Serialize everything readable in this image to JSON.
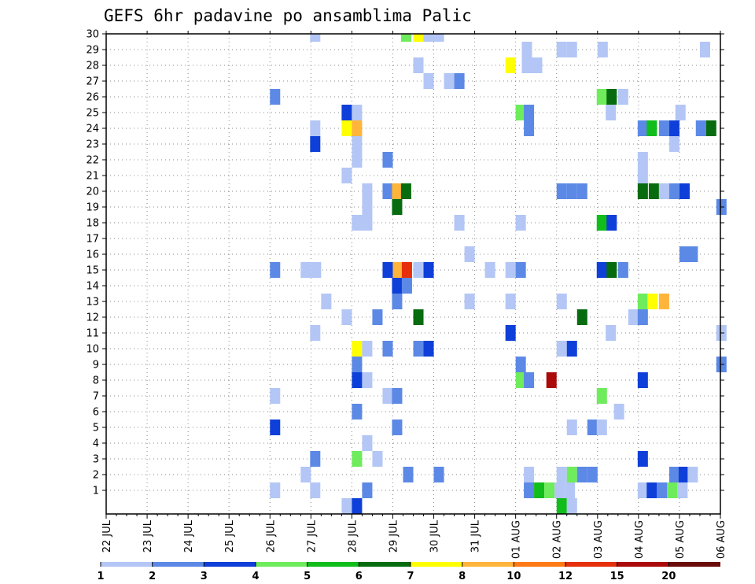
{
  "chart_data": {
    "type": "heatmap",
    "title": "GEFS 6hr padavine po ansamblima Palic",
    "xlabel": "",
    "ylabel": "",
    "x_tick_labels": [
      "22 JUL",
      "23 JUL",
      "24 JUL",
      "25 JUL",
      "26 JUL",
      "27 JUL",
      "28 JUL",
      "29 JUL",
      "30 JUL",
      "31 JUL",
      "01 AUG",
      "02 AUG",
      "03 AUG",
      "04 AUG",
      "05 AUG",
      "06 AUG"
    ],
    "y_tick_labels": [
      "1",
      "2",
      "3",
      "4",
      "5",
      "6",
      "7",
      "8",
      "9",
      "10",
      "11",
      "12",
      "13",
      "14",
      "15",
      "16",
      "17",
      "18",
      "19",
      "20",
      "21",
      "22",
      "23",
      "24",
      "25",
      "26",
      "27",
      "28",
      "29",
      "30"
    ],
    "colorbar": {
      "labels": [
        "1",
        "2",
        "3",
        "4",
        "5",
        "6",
        "7",
        "8",
        "10",
        "12",
        "15",
        "20"
      ],
      "colors": [
        "#b3c6f5",
        "#5c89e6",
        "#0f3fd9",
        "#6eec5c",
        "#10bd1a",
        "#076b0f",
        "#ffff00",
        "#ffb43b",
        "#ff7a15",
        "#e5300b",
        "#aa0a0a",
        "#6b0a0a"
      ]
    },
    "color_levels": [
      {
        "level": 1,
        "color": "#b3c6f5"
      },
      {
        "level": 2,
        "color": "#5c89e6"
      },
      {
        "level": 3,
        "color": "#0f3fd9"
      },
      {
        "level": 4,
        "color": "#6eec5c"
      },
      {
        "level": 5,
        "color": "#10bd1a"
      },
      {
        "level": 6,
        "color": "#076b0f"
      },
      {
        "level": 7,
        "color": "#ffff00"
      },
      {
        "level": 8,
        "color": "#ffb43b"
      },
      {
        "level": 10,
        "color": "#ff7a15"
      },
      {
        "level": 12,
        "color": "#e5300b"
      },
      {
        "level": 15,
        "color": "#aa0a0a"
      },
      {
        "level": 20,
        "color": "#6b0a0a"
      }
    ],
    "cells": [
      {
        "day": 4.98,
        "member": 30,
        "level": 1
      },
      {
        "day": 7.2,
        "member": 30,
        "level": 4
      },
      {
        "day": 7.5,
        "member": 30,
        "level": 7
      },
      {
        "day": 7.75,
        "member": 30,
        "level": 1
      },
      {
        "day": 8.0,
        "member": 30,
        "level": 1
      },
      {
        "day": 10.15,
        "member": 29,
        "level": 1
      },
      {
        "day": 11.0,
        "member": 29,
        "level": 1
      },
      {
        "day": 11.25,
        "member": 29,
        "level": 1
      },
      {
        "day": 12.0,
        "member": 29,
        "level": 1
      },
      {
        "day": 14.5,
        "member": 29,
        "level": 1
      },
      {
        "day": 7.5,
        "member": 28,
        "level": 1
      },
      {
        "day": 9.75,
        "member": 28,
        "level": 7
      },
      {
        "day": 10.15,
        "member": 28,
        "level": 1
      },
      {
        "day": 10.4,
        "member": 28,
        "level": 1
      },
      {
        "day": 7.75,
        "member": 27,
        "level": 1
      },
      {
        "day": 8.25,
        "member": 27,
        "level": 1
      },
      {
        "day": 8.5,
        "member": 27,
        "level": 2
      },
      {
        "day": 4.0,
        "member": 26,
        "level": 2
      },
      {
        "day": 11.98,
        "member": 26,
        "level": 4
      },
      {
        "day": 12.22,
        "member": 26,
        "level": 6
      },
      {
        "day": 12.5,
        "member": 26,
        "level": 1
      },
      {
        "day": 5.75,
        "member": 25,
        "level": 3
      },
      {
        "day": 6.0,
        "member": 25,
        "level": 1
      },
      {
        "day": 10.0,
        "member": 25,
        "level": 4
      },
      {
        "day": 10.2,
        "member": 25,
        "level": 2
      },
      {
        "day": 12.2,
        "member": 25,
        "level": 1
      },
      {
        "day": 13.9,
        "member": 25,
        "level": 1
      },
      {
        "day": 4.98,
        "member": 24,
        "level": 1
      },
      {
        "day": 5.75,
        "member": 24,
        "level": 7
      },
      {
        "day": 6.0,
        "member": 24,
        "level": 8
      },
      {
        "day": 10.2,
        "member": 24,
        "level": 2
      },
      {
        "day": 12.98,
        "member": 24,
        "level": 2
      },
      {
        "day": 13.2,
        "member": 24,
        "level": 5
      },
      {
        "day": 13.5,
        "member": 24,
        "level": 2
      },
      {
        "day": 13.75,
        "member": 24,
        "level": 3
      },
      {
        "day": 14.4,
        "member": 24,
        "level": 2
      },
      {
        "day": 14.65,
        "member": 24,
        "level": 6
      },
      {
        "day": 4.98,
        "member": 23,
        "level": 3
      },
      {
        "day": 6.0,
        "member": 23,
        "level": 1
      },
      {
        "day": 13.75,
        "member": 23,
        "level": 1
      },
      {
        "day": 6.0,
        "member": 22,
        "level": 1
      },
      {
        "day": 6.75,
        "member": 22,
        "level": 2
      },
      {
        "day": 12.98,
        "member": 22,
        "level": 1
      },
      {
        "day": 5.75,
        "member": 21,
        "level": 1
      },
      {
        "day": 12.98,
        "member": 21,
        "level": 1
      },
      {
        "day": 6.25,
        "member": 20,
        "level": 1
      },
      {
        "day": 6.75,
        "member": 20,
        "level": 2
      },
      {
        "day": 6.98,
        "member": 20,
        "level": 8
      },
      {
        "day": 7.2,
        "member": 20,
        "level": 6
      },
      {
        "day": 11.0,
        "member": 20,
        "level": 2
      },
      {
        "day": 11.25,
        "member": 20,
        "level": 2
      },
      {
        "day": 11.5,
        "member": 20,
        "level": 2
      },
      {
        "day": 12.98,
        "member": 20,
        "level": 6
      },
      {
        "day": 13.25,
        "member": 20,
        "level": 6
      },
      {
        "day": 13.5,
        "member": 20,
        "level": 1
      },
      {
        "day": 13.75,
        "member": 20,
        "level": 2
      },
      {
        "day": 14.0,
        "member": 20,
        "level": 3
      },
      {
        "day": 6.25,
        "member": 19,
        "level": 1
      },
      {
        "day": 6.98,
        "member": 19,
        "level": 6
      },
      {
        "day": 14.9,
        "member": 19,
        "level": 2
      },
      {
        "day": 6.0,
        "member": 18,
        "level": 1
      },
      {
        "day": 6.25,
        "member": 18,
        "level": 1
      },
      {
        "day": 8.5,
        "member": 18,
        "level": 1
      },
      {
        "day": 10.0,
        "member": 18,
        "level": 1
      },
      {
        "day": 11.98,
        "member": 18,
        "level": 5
      },
      {
        "day": 12.22,
        "member": 18,
        "level": 3
      },
      {
        "day": 8.75,
        "member": 16,
        "level": 1
      },
      {
        "day": 14.0,
        "member": 16,
        "level": 2
      },
      {
        "day": 14.2,
        "member": 16,
        "level": 2
      },
      {
        "day": 4.0,
        "member": 15,
        "level": 2
      },
      {
        "day": 4.75,
        "member": 15,
        "level": 1
      },
      {
        "day": 5.0,
        "member": 15,
        "level": 1
      },
      {
        "day": 6.75,
        "member": 15,
        "level": 3
      },
      {
        "day": 7.0,
        "member": 15,
        "level": 8
      },
      {
        "day": 7.22,
        "member": 15,
        "level": 12
      },
      {
        "day": 7.5,
        "member": 15,
        "level": 1
      },
      {
        "day": 7.75,
        "member": 15,
        "level": 3
      },
      {
        "day": 9.25,
        "member": 15,
        "level": 1
      },
      {
        "day": 9.75,
        "member": 15,
        "level": 1
      },
      {
        "day": 10.0,
        "member": 15,
        "level": 2
      },
      {
        "day": 11.98,
        "member": 15,
        "level": 3
      },
      {
        "day": 12.22,
        "member": 15,
        "level": 6
      },
      {
        "day": 12.5,
        "member": 15,
        "level": 2
      },
      {
        "day": 6.98,
        "member": 14,
        "level": 3
      },
      {
        "day": 7.22,
        "member": 14,
        "level": 2
      },
      {
        "day": 5.25,
        "member": 13,
        "level": 1
      },
      {
        "day": 6.98,
        "member": 13,
        "level": 2
      },
      {
        "day": 8.75,
        "member": 13,
        "level": 1
      },
      {
        "day": 9.75,
        "member": 13,
        "level": 1
      },
      {
        "day": 11.0,
        "member": 13,
        "level": 1
      },
      {
        "day": 12.98,
        "member": 13,
        "level": 4
      },
      {
        "day": 13.22,
        "member": 13,
        "level": 7
      },
      {
        "day": 13.5,
        "member": 13,
        "level": 8
      },
      {
        "day": 5.75,
        "member": 12,
        "level": 1
      },
      {
        "day": 6.5,
        "member": 12,
        "level": 2
      },
      {
        "day": 7.5,
        "member": 12,
        "level": 6
      },
      {
        "day": 11.5,
        "member": 12,
        "level": 6
      },
      {
        "day": 12.75,
        "member": 12,
        "level": 1
      },
      {
        "day": 12.98,
        "member": 12,
        "level": 2
      },
      {
        "day": 4.98,
        "member": 11,
        "level": 1
      },
      {
        "day": 9.75,
        "member": 11,
        "level": 3
      },
      {
        "day": 12.2,
        "member": 11,
        "level": 1
      },
      {
        "day": 14.9,
        "member": 11,
        "level": 1
      },
      {
        "day": 6.0,
        "member": 10,
        "level": 7
      },
      {
        "day": 6.25,
        "member": 10,
        "level": 1
      },
      {
        "day": 6.75,
        "member": 10,
        "level": 2
      },
      {
        "day": 7.5,
        "member": 10,
        "level": 2
      },
      {
        "day": 7.75,
        "member": 10,
        "level": 3
      },
      {
        "day": 11.0,
        "member": 10,
        "level": 1
      },
      {
        "day": 11.25,
        "member": 10,
        "level": 3
      },
      {
        "day": 6.0,
        "member": 9,
        "level": 2
      },
      {
        "day": 10.0,
        "member": 9,
        "level": 2
      },
      {
        "day": 14.9,
        "member": 9,
        "level": 2
      },
      {
        "day": 6.0,
        "member": 8,
        "level": 3
      },
      {
        "day": 6.25,
        "member": 8,
        "level": 1
      },
      {
        "day": 10.0,
        "member": 8,
        "level": 4
      },
      {
        "day": 10.2,
        "member": 8,
        "level": 2
      },
      {
        "day": 10.75,
        "member": 8,
        "level": 15
      },
      {
        "day": 12.98,
        "member": 8,
        "level": 3
      },
      {
        "day": 4.0,
        "member": 7,
        "level": 1
      },
      {
        "day": 6.75,
        "member": 7,
        "level": 1
      },
      {
        "day": 6.98,
        "member": 7,
        "level": 2
      },
      {
        "day": 11.98,
        "member": 7,
        "level": 4
      },
      {
        "day": 6.0,
        "member": 6,
        "level": 2
      },
      {
        "day": 12.4,
        "member": 6,
        "level": 1
      },
      {
        "day": 4.0,
        "member": 5,
        "level": 3
      },
      {
        "day": 6.98,
        "member": 5,
        "level": 2
      },
      {
        "day": 11.25,
        "member": 5,
        "level": 1
      },
      {
        "day": 11.75,
        "member": 5,
        "level": 2
      },
      {
        "day": 11.98,
        "member": 5,
        "level": 1
      },
      {
        "day": 6.25,
        "member": 4,
        "level": 1
      },
      {
        "day": 4.98,
        "member": 3,
        "level": 2
      },
      {
        "day": 6.0,
        "member": 3,
        "level": 4
      },
      {
        "day": 6.5,
        "member": 3,
        "level": 1
      },
      {
        "day": 12.98,
        "member": 3,
        "level": 3
      },
      {
        "day": 4.75,
        "member": 2,
        "level": 1
      },
      {
        "day": 7.25,
        "member": 2,
        "level": 2
      },
      {
        "day": 8.0,
        "member": 2,
        "level": 2
      },
      {
        "day": 10.2,
        "member": 2,
        "level": 1
      },
      {
        "day": 11.0,
        "member": 2,
        "level": 1
      },
      {
        "day": 11.25,
        "member": 2,
        "level": 4
      },
      {
        "day": 11.5,
        "member": 2,
        "level": 2
      },
      {
        "day": 11.75,
        "member": 2,
        "level": 2
      },
      {
        "day": 13.75,
        "member": 2,
        "level": 2
      },
      {
        "day": 13.98,
        "member": 2,
        "level": 3
      },
      {
        "day": 14.2,
        "member": 2,
        "level": 1
      },
      {
        "day": 4.0,
        "member": 1,
        "level": 1
      },
      {
        "day": 4.98,
        "member": 1,
        "level": 1
      },
      {
        "day": 6.25,
        "member": 1,
        "level": 2
      },
      {
        "day": 10.2,
        "member": 1,
        "level": 2
      },
      {
        "day": 10.45,
        "member": 1,
        "level": 5
      },
      {
        "day": 10.7,
        "member": 1,
        "level": 4
      },
      {
        "day": 10.95,
        "member": 1,
        "level": 1
      },
      {
        "day": 11.2,
        "member": 1,
        "level": 1
      },
      {
        "day": 12.98,
        "member": 1,
        "level": 1
      },
      {
        "day": 13.2,
        "member": 1,
        "level": 3
      },
      {
        "day": 13.45,
        "member": 1,
        "level": 2
      },
      {
        "day": 13.7,
        "member": 1,
        "level": 4
      },
      {
        "day": 13.95,
        "member": 1,
        "level": 1
      },
      {
        "day": 5.75,
        "member": 0,
        "level": 1
      },
      {
        "day": 6.0,
        "member": 0,
        "level": 3
      },
      {
        "day": 11.0,
        "member": 0,
        "level": 5
      },
      {
        "day": 11.25,
        "member": 0,
        "level": 1
      }
    ]
  }
}
